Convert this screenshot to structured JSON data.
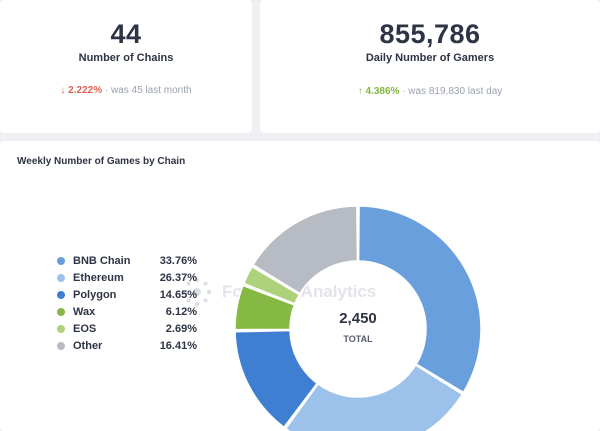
{
  "stats": {
    "chains": {
      "value": "44",
      "label": "Number of Chains",
      "change_arrow": "↓",
      "change_pct": "2.222%",
      "change_suffix": "· was 45 last month"
    },
    "gamers": {
      "value": "855,786",
      "label": "Daily Number of Gamers",
      "change_arrow": "↑",
      "change_pct": "4.386%",
      "change_suffix": "· was 819,830 last day"
    }
  },
  "colors": {
    "down": "#e1604f",
    "up": "#84b63f",
    "center_ring": "#ffffff"
  },
  "watermark": "Footprint Analytics",
  "chart_data": {
    "type": "pie",
    "donut": true,
    "title": "Weekly Number of Games by Chain",
    "center_value": "2,450",
    "center_label": "TOTAL",
    "legend_position": "left",
    "slices": [
      {
        "label": "BNB Chain",
        "pct_label": "33.76%",
        "value": 33.76,
        "color": "#6a9fdd"
      },
      {
        "label": "Ethereum",
        "pct_label": "26.37%",
        "value": 26.37,
        "color": "#9cc1eb"
      },
      {
        "label": "Polygon",
        "pct_label": "14.65%",
        "value": 14.65,
        "color": "#3f7fd1"
      },
      {
        "label": "Wax",
        "pct_label": "6.12%",
        "value": 6.12,
        "color": "#86b844"
      },
      {
        "label": "EOS",
        "pct_label": "2.69%",
        "value": 2.69,
        "color": "#aed27c"
      },
      {
        "label": "Other",
        "pct_label": "16.41%",
        "value": 16.41,
        "color": "#b7bcc4"
      }
    ]
  }
}
